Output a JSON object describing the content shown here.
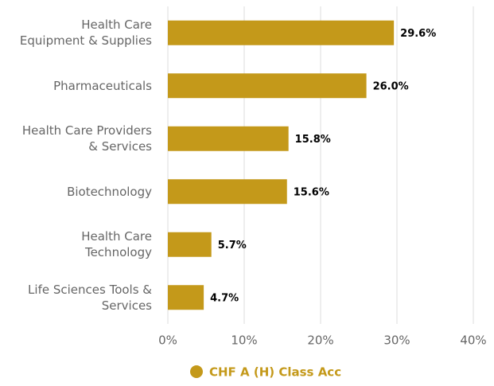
{
  "chart_data": {
    "type": "barh",
    "categories": [
      "Health Care\nEquipment & Supplies",
      "Pharmaceuticals",
      "Health Care Providers\n& Services",
      "Biotechnology",
      "Health Care\nTechnology",
      "Life Sciences Tools &\nServices"
    ],
    "series": [
      {
        "name": "CHF A (H) Class Acc",
        "color": "#c4991a",
        "values": [
          29.6,
          26.0,
          15.8,
          15.6,
          5.7,
          4.7
        ],
        "value_labels": [
          "29.6%",
          "26.0%",
          "15.8%",
          "15.6%",
          "5.7%",
          "4.7%"
        ]
      }
    ],
    "xlim": [
      0,
      40
    ],
    "xticks": [
      {
        "value": 0,
        "label": "0%"
      },
      {
        "value": 10,
        "label": "10%"
      },
      {
        "value": 20,
        "label": "20%"
      },
      {
        "value": 30,
        "label": "30%"
      },
      {
        "value": 40,
        "label": "40%"
      }
    ],
    "grid": true,
    "legend": "bottom"
  }
}
